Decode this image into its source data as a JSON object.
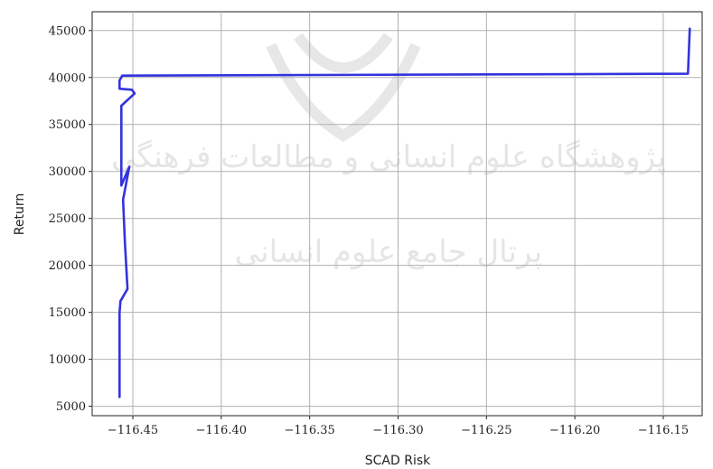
{
  "chart_data": {
    "type": "line",
    "title": "",
    "xlabel": "SCAD Risk",
    "ylabel": "Return",
    "xlim": [
      -116.473,
      -116.128
    ],
    "ylim": [
      4000,
      47000
    ],
    "grid": true,
    "legend": "none",
    "line_color": "#3333dd",
    "x_ticks": [
      -116.45,
      -116.4,
      -116.35,
      -116.3,
      -116.25,
      -116.2,
      -116.15
    ],
    "x_tick_labels": [
      "−116.45",
      "−116.40",
      "−116.35",
      "−116.30",
      "−116.25",
      "−116.20",
      "−116.15"
    ],
    "y_ticks": [
      5000,
      10000,
      15000,
      20000,
      25000,
      30000,
      35000,
      40000,
      45000
    ],
    "y_tick_labels": [
      "5000",
      "10000",
      "15000",
      "20000",
      "25000",
      "30000",
      "35000",
      "40000",
      "45000"
    ],
    "series": [
      {
        "x": [
          -116.4575,
          -116.4575,
          -116.457,
          -116.453,
          -116.4545,
          -116.4555,
          -116.452,
          -116.4565,
          -116.4565,
          -116.449,
          -116.4505,
          -116.4575,
          -116.4575,
          -116.456,
          -116.136,
          -116.135
        ],
        "y": [
          6000,
          15000,
          16200,
          17500,
          22500,
          27000,
          30500,
          28500,
          37000,
          38300,
          38700,
          38800,
          39700,
          40200,
          40400,
          45200
        ]
      }
    ]
  },
  "watermark": {
    "line1": "پژوهشگاه علوم انسانی و مطالعات فرهنگی",
    "line2": "پرتال جامع علوم انسانی"
  }
}
